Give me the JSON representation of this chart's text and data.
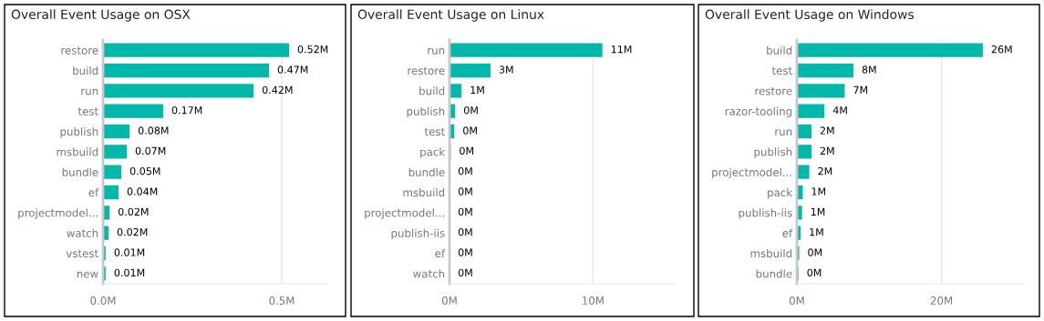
{
  "chart_data": [
    {
      "type": "bar",
      "orientation": "horizontal",
      "title": "Overall Event Usage on OSX",
      "categories": [
        "restore",
        "build",
        "run",
        "test",
        "publish",
        "msbuild",
        "bundle",
        "ef",
        "projectmodel...",
        "watch",
        "vstest",
        "new"
      ],
      "values": [
        0.522,
        0.466,
        0.423,
        0.17,
        0.076,
        0.068,
        0.053,
        0.045,
        0.02,
        0.017,
        0.009,
        0.009
      ],
      "value_labels": [
        "0.52M",
        "0.47M",
        "0.42M",
        "0.17M",
        "0.08M",
        "0.07M",
        "0.05M",
        "0.04M",
        "0.02M",
        "0.02M",
        "0.01M",
        "0.01M"
      ],
      "color": "#01b8aa",
      "xlim": [
        0,
        0.63
      ],
      "xticks": [
        {
          "value": 0,
          "label": "0.0M"
        },
        {
          "value": 0.5,
          "label": "0.5M"
        }
      ],
      "grid": "x"
    },
    {
      "type": "bar",
      "orientation": "horizontal",
      "title": "Overall Event Usage on Linux",
      "categories": [
        "run",
        "restore",
        "build",
        "publish",
        "test",
        "pack",
        "bundle",
        "msbuild",
        "projectmodel...",
        "publish-iis",
        "ef",
        "watch"
      ],
      "values": [
        10.7,
        2.9,
        0.88,
        0.44,
        0.38,
        0.13,
        0.05,
        0.05,
        0.05,
        0.05,
        0.05,
        0.05
      ],
      "value_labels": [
        "11M",
        "3M",
        "1M",
        "0M",
        "0M",
        "0M",
        "0M",
        "0M",
        "0M",
        "0M",
        "0M",
        "0M"
      ],
      "color": "#01b8aa",
      "xlim": [
        0,
        15.7
      ],
      "xticks": [
        {
          "value": 0,
          "label": "0M"
        },
        {
          "value": 10,
          "label": "10M"
        }
      ],
      "grid": "x"
    },
    {
      "type": "bar",
      "orientation": "horizontal",
      "title": "Overall Event Usage on Windows",
      "categories": [
        "build",
        "test",
        "restore",
        "razor-tooling",
        "run",
        "publish",
        "projectmodel...",
        "pack",
        "publish-iis",
        "ef",
        "msbuild",
        "bundle"
      ],
      "values": [
        25.8,
        7.9,
        6.7,
        3.9,
        2.1,
        2.1,
        1.8,
        0.9,
        0.8,
        0.6,
        0.4,
        0.3
      ],
      "value_labels": [
        "26M",
        "8M",
        "7M",
        "4M",
        "2M",
        "2M",
        "2M",
        "1M",
        "1M",
        "1M",
        "0M",
        "0M"
      ],
      "color": "#01b8aa",
      "xlim": [
        0,
        31.4
      ],
      "xticks": [
        {
          "value": 0,
          "label": "0M"
        },
        {
          "value": 20,
          "label": "20M"
        }
      ],
      "grid": "x"
    }
  ]
}
